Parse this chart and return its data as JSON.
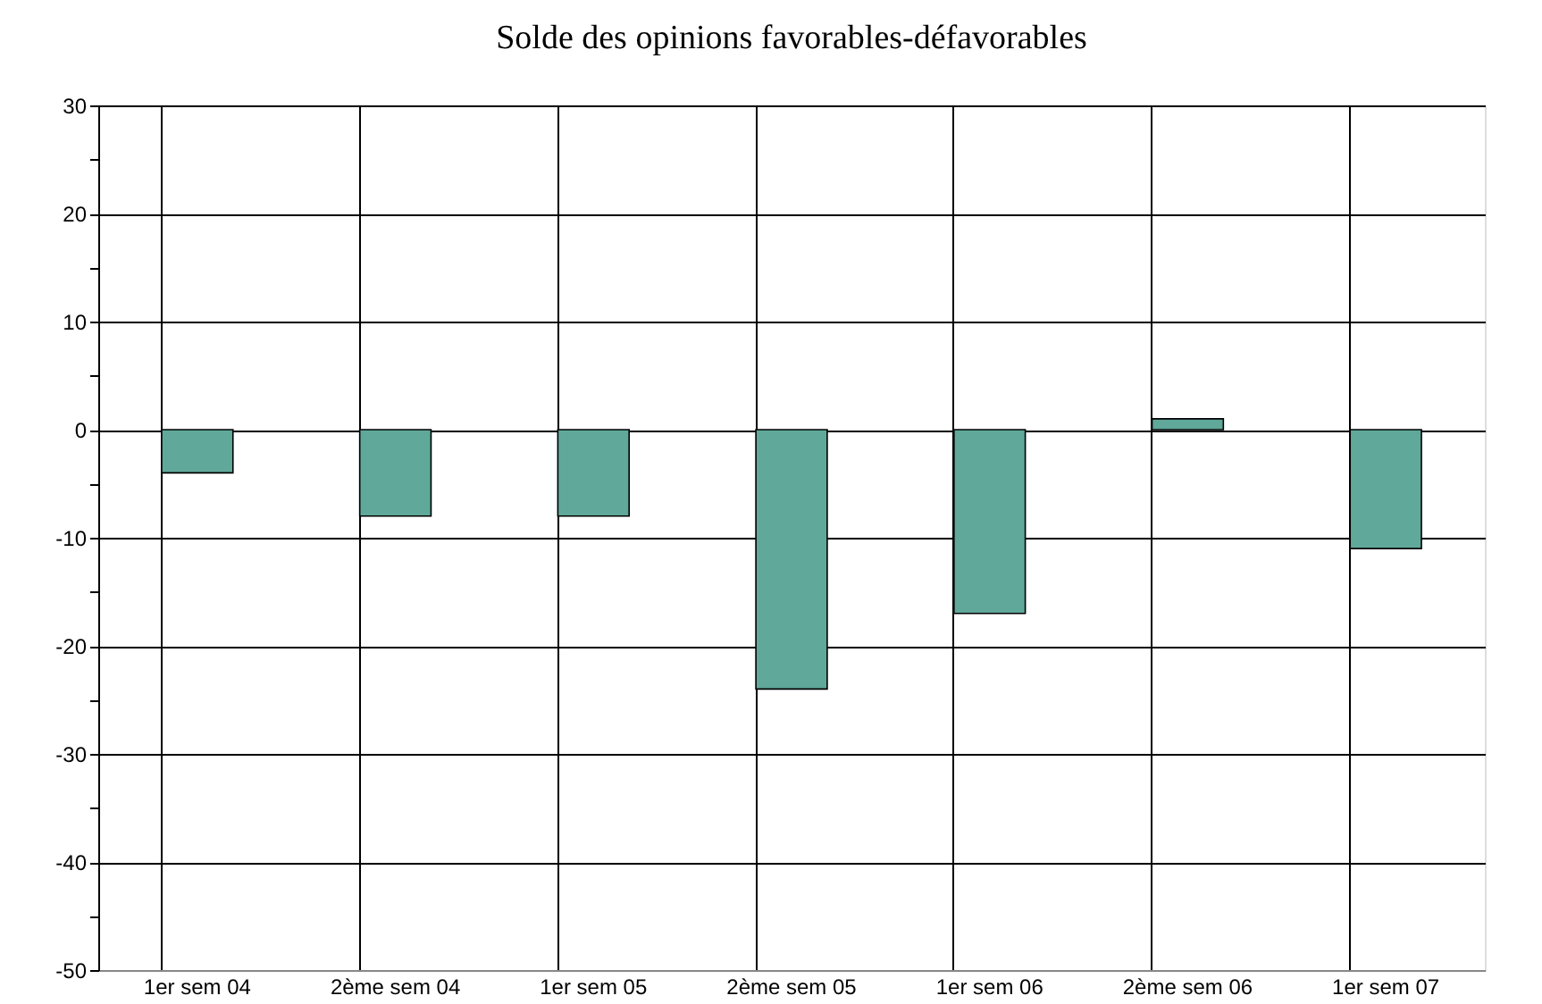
{
  "chart_data": {
    "type": "bar",
    "title": "Solde des opinions favorables-défavorables",
    "categories": [
      "1er sem 04",
      "2ème sem 04",
      "1er sem 05",
      "2ème sem 05",
      "1er sem 06",
      "2ème sem 06",
      "1er sem 07"
    ],
    "values": [
      -4,
      -8,
      -8,
      -24,
      -17,
      1,
      -11
    ],
    "color": "#5fa89a",
    "ylim": [
      -50,
      30
    ],
    "yticks": [
      -50,
      {
        "value": -45,
        "label": null
      },
      -40,
      {
        "value": -35,
        "label": null
      },
      -30,
      {
        "value": -25,
        "label": null
      },
      -20,
      {
        "value": -15,
        "label": null
      },
      -10,
      {
        "value": -5,
        "label": null
      },
      0,
      {
        "value": 5,
        "label": null
      },
      10,
      {
        "value": 15,
        "label": null
      },
      20,
      {
        "value": 25,
        "label": null
      },
      30
    ],
    "grid": true
  }
}
